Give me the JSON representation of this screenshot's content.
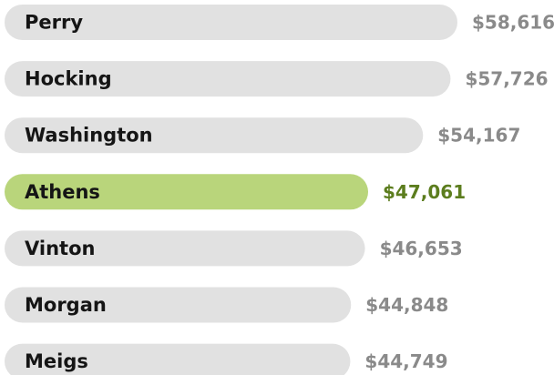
{
  "chart_data": {
    "type": "bar",
    "orientation": "horizontal",
    "categories": [
      "Perry",
      "Hocking",
      "Washington",
      "Athens",
      "Vinton",
      "Morgan",
      "Meigs"
    ],
    "values": [
      58616,
      57726,
      54167,
      47061,
      46653,
      44848,
      44749
    ],
    "value_labels": [
      "$58,616",
      "$57,726",
      "$54,167",
      "$47,061",
      "$46,653",
      "$44,848",
      "$44,749"
    ],
    "colors": [
      "#e1e1e1",
      "#e1e1e1",
      "#e1e1e1",
      "#b9d57b",
      "#e1e1e1",
      "#e1e1e1",
      "#e1e1e1"
    ],
    "value_label_colors": [
      "#8a8a8a",
      "#8a8a8a",
      "#8a8a8a",
      "#5c7d1e",
      "#8a8a8a",
      "#8a8a8a",
      "#8a8a8a"
    ]
  }
}
